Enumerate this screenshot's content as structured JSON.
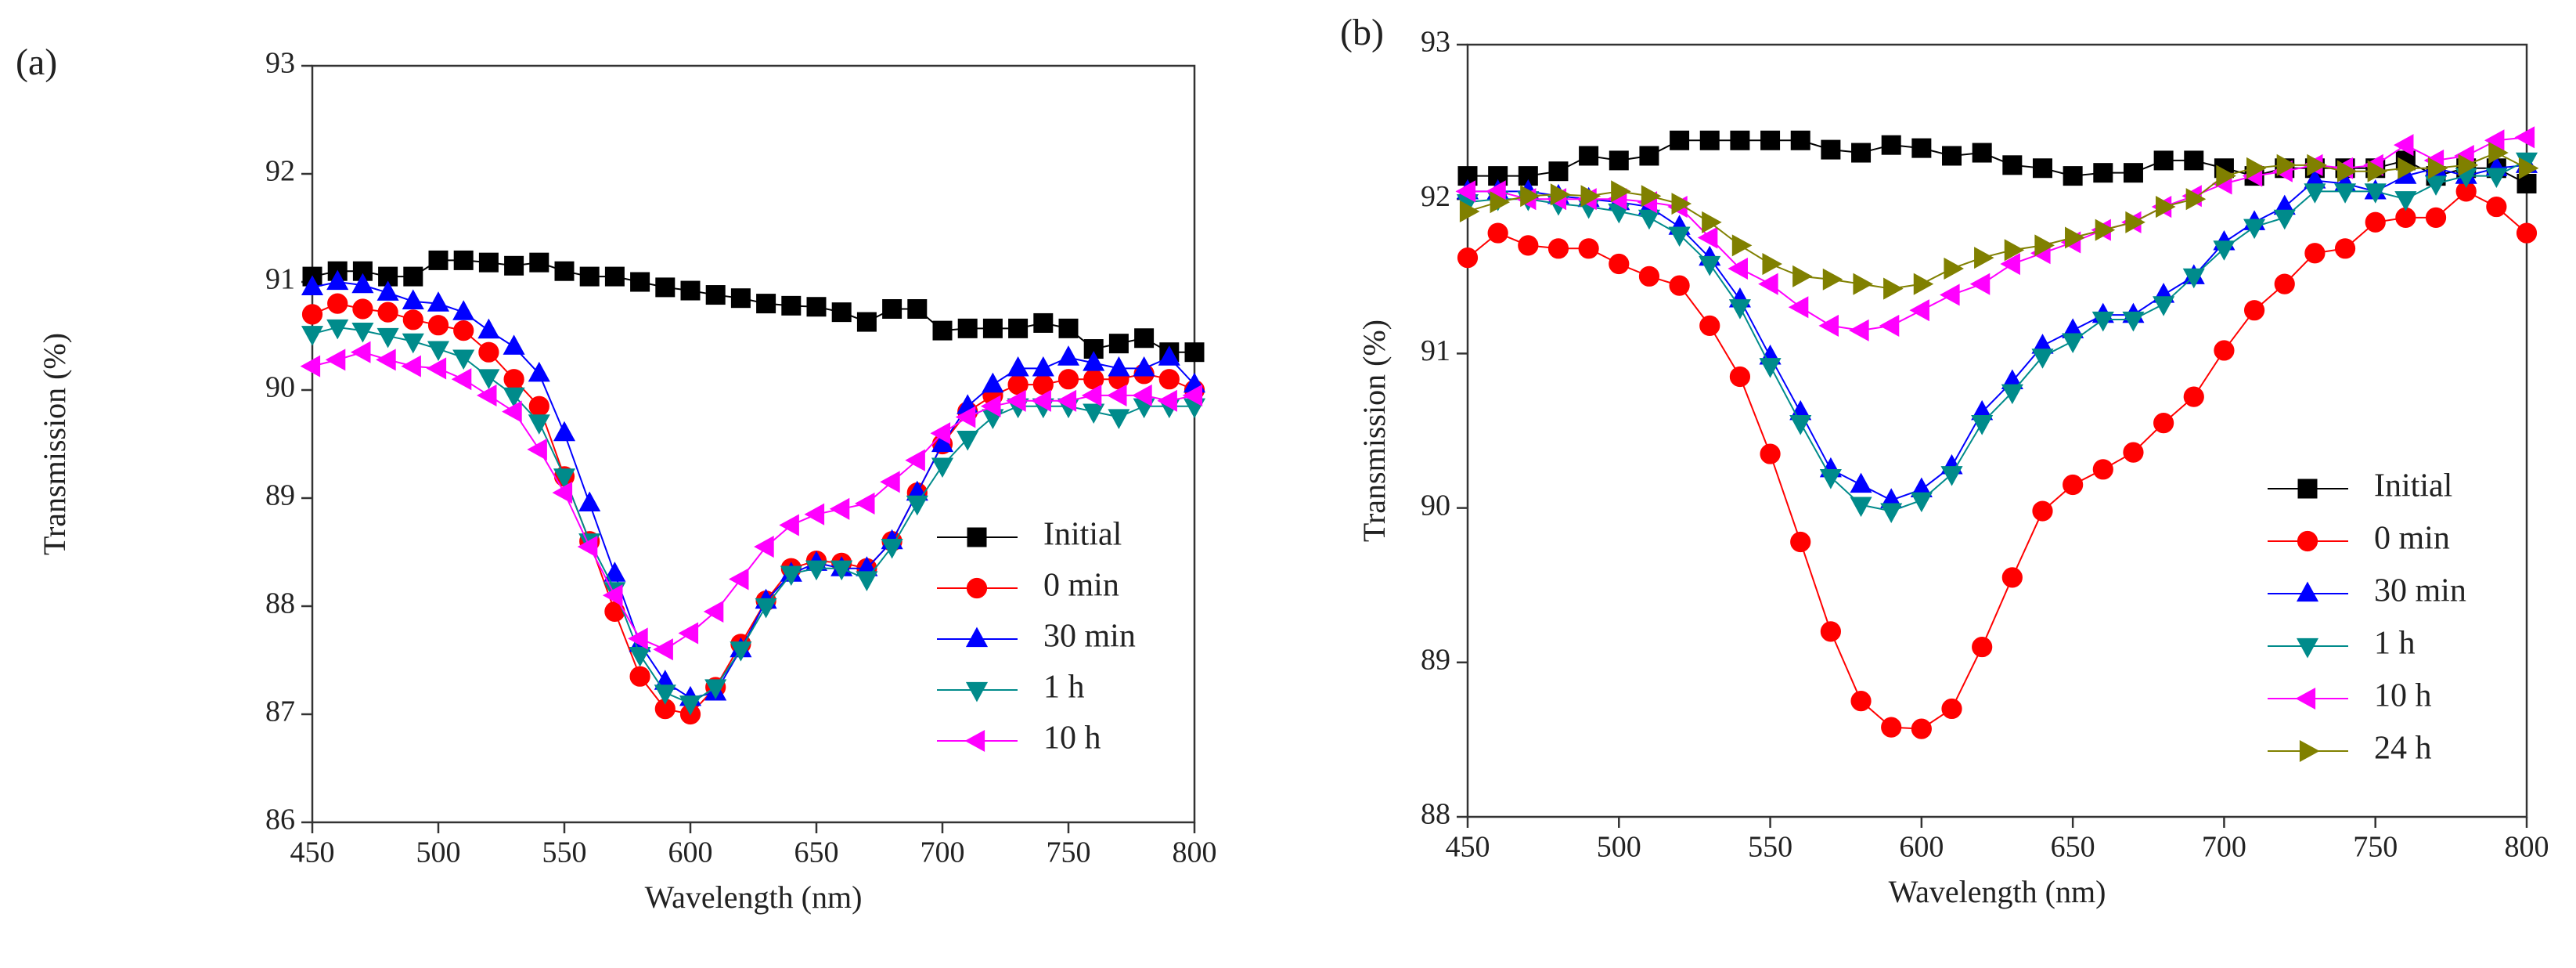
{
  "chart_data": [
    {
      "type": "line",
      "panel_label": "(a)",
      "x_label": "Wavelength (nm)",
      "y_label": "Transmission (%)",
      "xlim": [
        450,
        800
      ],
      "xticks": [
        450,
        500,
        550,
        600,
        650,
        700,
        750,
        800
      ],
      "ylim": [
        86,
        93
      ],
      "yticks": [
        86,
        87,
        88,
        89,
        90,
        91,
        92,
        93
      ],
      "legend": "lower right",
      "x": [
        450,
        460,
        470,
        480,
        490,
        500,
        510,
        520,
        530,
        540,
        550,
        560,
        570,
        580,
        590,
        600,
        610,
        620,
        630,
        640,
        650,
        660,
        670,
        680,
        690,
        700,
        710,
        720,
        730,
        740,
        750,
        760,
        770,
        780,
        790,
        800
      ],
      "series": [
        {
          "name": "Initial",
          "color": "#000000",
          "marker": "square",
          "values": [
            91.05,
            91.1,
            91.1,
            91.05,
            91.05,
            91.2,
            91.2,
            91.18,
            91.15,
            91.18,
            91.1,
            91.05,
            91.05,
            91.0,
            90.95,
            90.92,
            90.88,
            90.85,
            90.8,
            90.78,
            90.77,
            90.72,
            90.63,
            90.75,
            90.75,
            90.55,
            90.57,
            90.57,
            90.57,
            90.62,
            90.57,
            90.38,
            90.43,
            90.48,
            90.35,
            90.35
          ]
        },
        {
          "name": "0 min",
          "color": "#ff0000",
          "marker": "circle",
          "values": [
            90.7,
            90.8,
            90.75,
            90.72,
            90.65,
            90.6,
            90.55,
            90.35,
            90.1,
            89.85,
            89.2,
            88.6,
            87.95,
            87.35,
            87.05,
            87.0,
            87.25,
            87.65,
            88.05,
            88.35,
            88.42,
            88.4,
            88.35,
            88.6,
            89.05,
            89.5,
            89.8,
            89.95,
            90.05,
            90.05,
            90.1,
            90.1,
            90.1,
            90.15,
            90.1,
            90.0
          ]
        },
        {
          "name": "30 min",
          "color": "#0000ff",
          "marker": "triangle-up",
          "values": [
            90.95,
            91.0,
            90.97,
            90.9,
            90.82,
            90.8,
            90.72,
            90.55,
            90.4,
            90.15,
            89.6,
            88.95,
            88.3,
            87.65,
            87.3,
            87.15,
            87.2,
            87.6,
            88.05,
            88.3,
            88.4,
            88.35,
            88.35,
            88.6,
            89.05,
            89.5,
            89.85,
            90.05,
            90.2,
            90.2,
            90.3,
            90.25,
            90.2,
            90.2,
            90.3,
            90.05
          ]
        },
        {
          "name": "1 h",
          "color": "#008b8b",
          "marker": "triangle-down",
          "values": [
            90.52,
            90.58,
            90.55,
            90.5,
            90.45,
            90.38,
            90.3,
            90.12,
            89.95,
            89.7,
            89.2,
            88.6,
            88.15,
            87.55,
            87.2,
            87.1,
            87.25,
            87.6,
            88.0,
            88.3,
            88.35,
            88.35,
            88.25,
            88.55,
            88.95,
            89.3,
            89.55,
            89.75,
            89.85,
            89.85,
            89.85,
            89.8,
            89.75,
            89.85,
            89.85,
            89.85
          ]
        },
        {
          "name": "10 h",
          "color": "#ff00ff",
          "marker": "triangle-left",
          "values": [
            90.22,
            90.28,
            90.35,
            90.28,
            90.22,
            90.2,
            90.1,
            89.95,
            89.8,
            89.45,
            89.05,
            88.55,
            88.1,
            87.7,
            87.6,
            87.75,
            87.95,
            88.25,
            88.55,
            88.75,
            88.85,
            88.9,
            88.95,
            89.15,
            89.35,
            89.6,
            89.75,
            89.85,
            89.9,
            89.9,
            89.9,
            89.95,
            89.95,
            89.95,
            89.9,
            89.95
          ]
        }
      ]
    },
    {
      "type": "line",
      "panel_label": "(b)",
      "x_label": "Wavelength (nm)",
      "y_label": "Transmission (%)",
      "xlim": [
        450,
        800
      ],
      "xticks": [
        450,
        500,
        550,
        600,
        650,
        700,
        750,
        800
      ],
      "ylim": [
        88,
        93
      ],
      "yticks": [
        88,
        89,
        90,
        91,
        92,
        93
      ],
      "legend": "center right",
      "x": [
        450,
        460,
        470,
        480,
        490,
        500,
        510,
        520,
        530,
        540,
        550,
        560,
        570,
        580,
        590,
        600,
        610,
        620,
        630,
        640,
        650,
        660,
        670,
        680,
        690,
        700,
        710,
        720,
        730,
        740,
        750,
        760,
        770,
        780,
        790,
        800
      ],
      "series": [
        {
          "name": "Initial",
          "color": "#000000",
          "marker": "square",
          "values": [
            92.15,
            92.15,
            92.15,
            92.18,
            92.28,
            92.25,
            92.28,
            92.38,
            92.38,
            92.38,
            92.38,
            92.38,
            92.32,
            92.3,
            92.35,
            92.33,
            92.28,
            92.3,
            92.22,
            92.2,
            92.15,
            92.17,
            92.17,
            92.25,
            92.25,
            92.2,
            92.15,
            92.2,
            92.2,
            92.2,
            92.2,
            92.25,
            92.15,
            92.2,
            92.2,
            92.1
          ]
        },
        {
          "name": "0 min",
          "color": "#ff0000",
          "marker": "circle",
          "values": [
            91.62,
            91.78,
            91.7,
            91.68,
            91.68,
            91.58,
            91.5,
            91.44,
            91.18,
            90.85,
            90.35,
            89.78,
            89.2,
            88.75,
            88.58,
            88.57,
            88.7,
            89.1,
            89.55,
            89.98,
            90.15,
            90.25,
            90.36,
            90.55,
            90.72,
            91.02,
            91.28,
            91.45,
            91.65,
            91.68,
            91.85,
            91.88,
            91.88,
            92.05,
            91.95,
            91.78
          ]
        },
        {
          "name": "30 min",
          "color": "#0000ff",
          "marker": "triangle-up",
          "values": [
            92.05,
            92.05,
            92.05,
            92.02,
            92.0,
            91.98,
            91.95,
            91.82,
            91.62,
            91.35,
            90.98,
            90.62,
            90.25,
            90.15,
            90.05,
            90.12,
            90.27,
            90.62,
            90.82,
            91.05,
            91.15,
            91.25,
            91.25,
            91.38,
            91.5,
            91.72,
            91.85,
            91.95,
            92.12,
            92.1,
            92.05,
            92.15,
            92.2,
            92.15,
            92.2,
            92.22
          ]
        },
        {
          "name": "1 h",
          "color": "#008b8b",
          "marker": "triangle-down",
          "values": [
            91.98,
            92.0,
            92.0,
            91.97,
            91.95,
            91.92,
            91.88,
            91.77,
            91.58,
            91.3,
            90.92,
            90.55,
            90.2,
            90.02,
            89.98,
            90.05,
            90.22,
            90.55,
            90.75,
            90.98,
            91.08,
            91.22,
            91.22,
            91.32,
            91.5,
            91.68,
            91.82,
            91.88,
            92.05,
            92.05,
            92.05,
            92.0,
            92.1,
            92.15,
            92.15,
            92.25
          ]
        },
        {
          "name": "10 h",
          "color": "#ff00ff",
          "marker": "triangle-left",
          "values": [
            92.05,
            92.05,
            92.0,
            92.0,
            92.0,
            92.0,
            91.98,
            91.95,
            91.75,
            91.55,
            91.45,
            91.3,
            91.18,
            91.15,
            91.18,
            91.28,
            91.38,
            91.45,
            91.58,
            91.65,
            91.72,
            91.8,
            91.85,
            91.95,
            92.02,
            92.1,
            92.15,
            92.18,
            92.22,
            92.2,
            92.22,
            92.35,
            92.25,
            92.28,
            92.38,
            92.4
          ]
        },
        {
          "name": "24 h",
          "color": "#808000",
          "marker": "triangle-right",
          "values": [
            91.92,
            91.98,
            92.02,
            92.03,
            92.02,
            92.05,
            92.02,
            91.97,
            91.85,
            91.7,
            91.58,
            91.5,
            91.48,
            91.45,
            91.42,
            91.45,
            91.55,
            91.62,
            91.67,
            91.7,
            91.75,
            91.8,
            91.85,
            91.95,
            92.0,
            92.15,
            92.2,
            92.22,
            92.22,
            92.18,
            92.18,
            92.2,
            92.2,
            92.22,
            92.3,
            92.2
          ]
        }
      ]
    }
  ]
}
